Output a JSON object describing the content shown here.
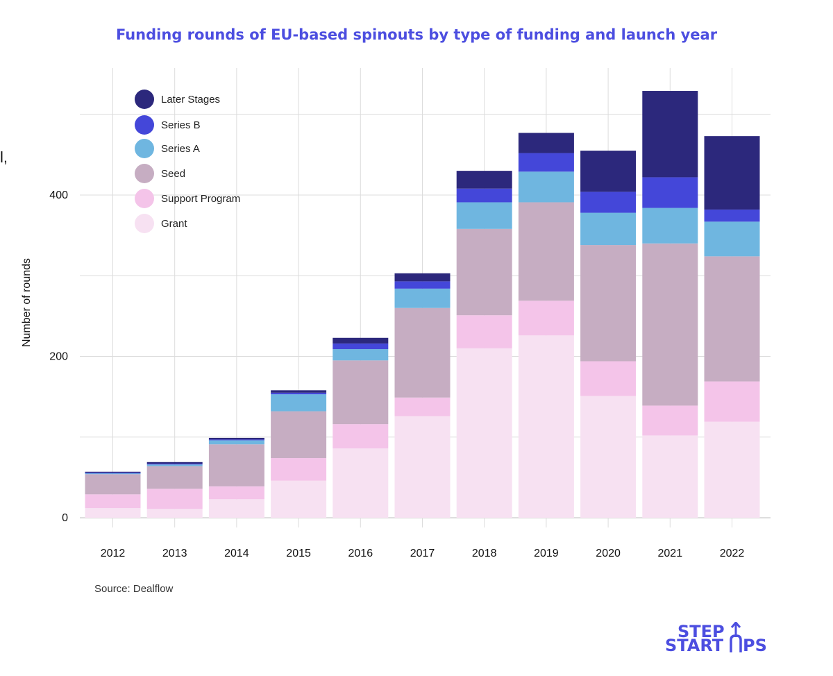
{
  "page": {
    "title": "Funding rounds of EU-based spinouts by type of funding and launch year",
    "source": "Source: Dealflow",
    "cutoff_char": "l,",
    "logo_line1": "STEP",
    "logo_line2": "START",
    "logo_line2_end": "PS"
  },
  "chart_data": {
    "type": "bar",
    "stacked": true,
    "title": "Funding rounds of EU-based spinouts by type of funding and launch year",
    "xlabel": "",
    "ylabel": "Number of rounds",
    "ylim": [
      0,
      570
    ],
    "yticks": [
      0,
      200,
      400
    ],
    "grid": true,
    "legend_position": "top-left",
    "categories": [
      "2012",
      "2013",
      "2014",
      "2015",
      "2016",
      "2017",
      "2018",
      "2019",
      "2020",
      "2021",
      "2022"
    ],
    "series": [
      {
        "name": "Grant",
        "color": "#f7e1f2",
        "values": [
          12,
          11,
          23,
          46,
          86,
          126,
          210,
          226,
          151,
          102,
          119
        ]
      },
      {
        "name": "Support Program",
        "color": "#f4c4e9",
        "values": [
          17,
          25,
          16,
          28,
          30,
          23,
          41,
          43,
          43,
          37,
          50
        ]
      },
      {
        "name": "Seed",
        "color": "#c6adc2",
        "values": [
          25,
          28,
          52,
          58,
          79,
          111,
          107,
          122,
          144,
          201,
          155
        ]
      },
      {
        "name": "Series A",
        "color": "#6fb6e0",
        "values": [
          1,
          2,
          5,
          21,
          14,
          24,
          33,
          38,
          40,
          44,
          43
        ]
      },
      {
        "name": "Series B",
        "color": "#4447d9",
        "values": [
          1,
          1,
          1,
          2,
          7,
          9,
          17,
          23,
          26,
          38,
          15
        ]
      },
      {
        "name": "Later Stages",
        "color": "#2c287c",
        "values": [
          1,
          2,
          2,
          3,
          7,
          10,
          22,
          25,
          51,
          107,
          91
        ]
      }
    ],
    "legend_order": [
      "Later Stages",
      "Series B",
      "Series A",
      "Seed",
      "Support Program",
      "Grant"
    ]
  }
}
